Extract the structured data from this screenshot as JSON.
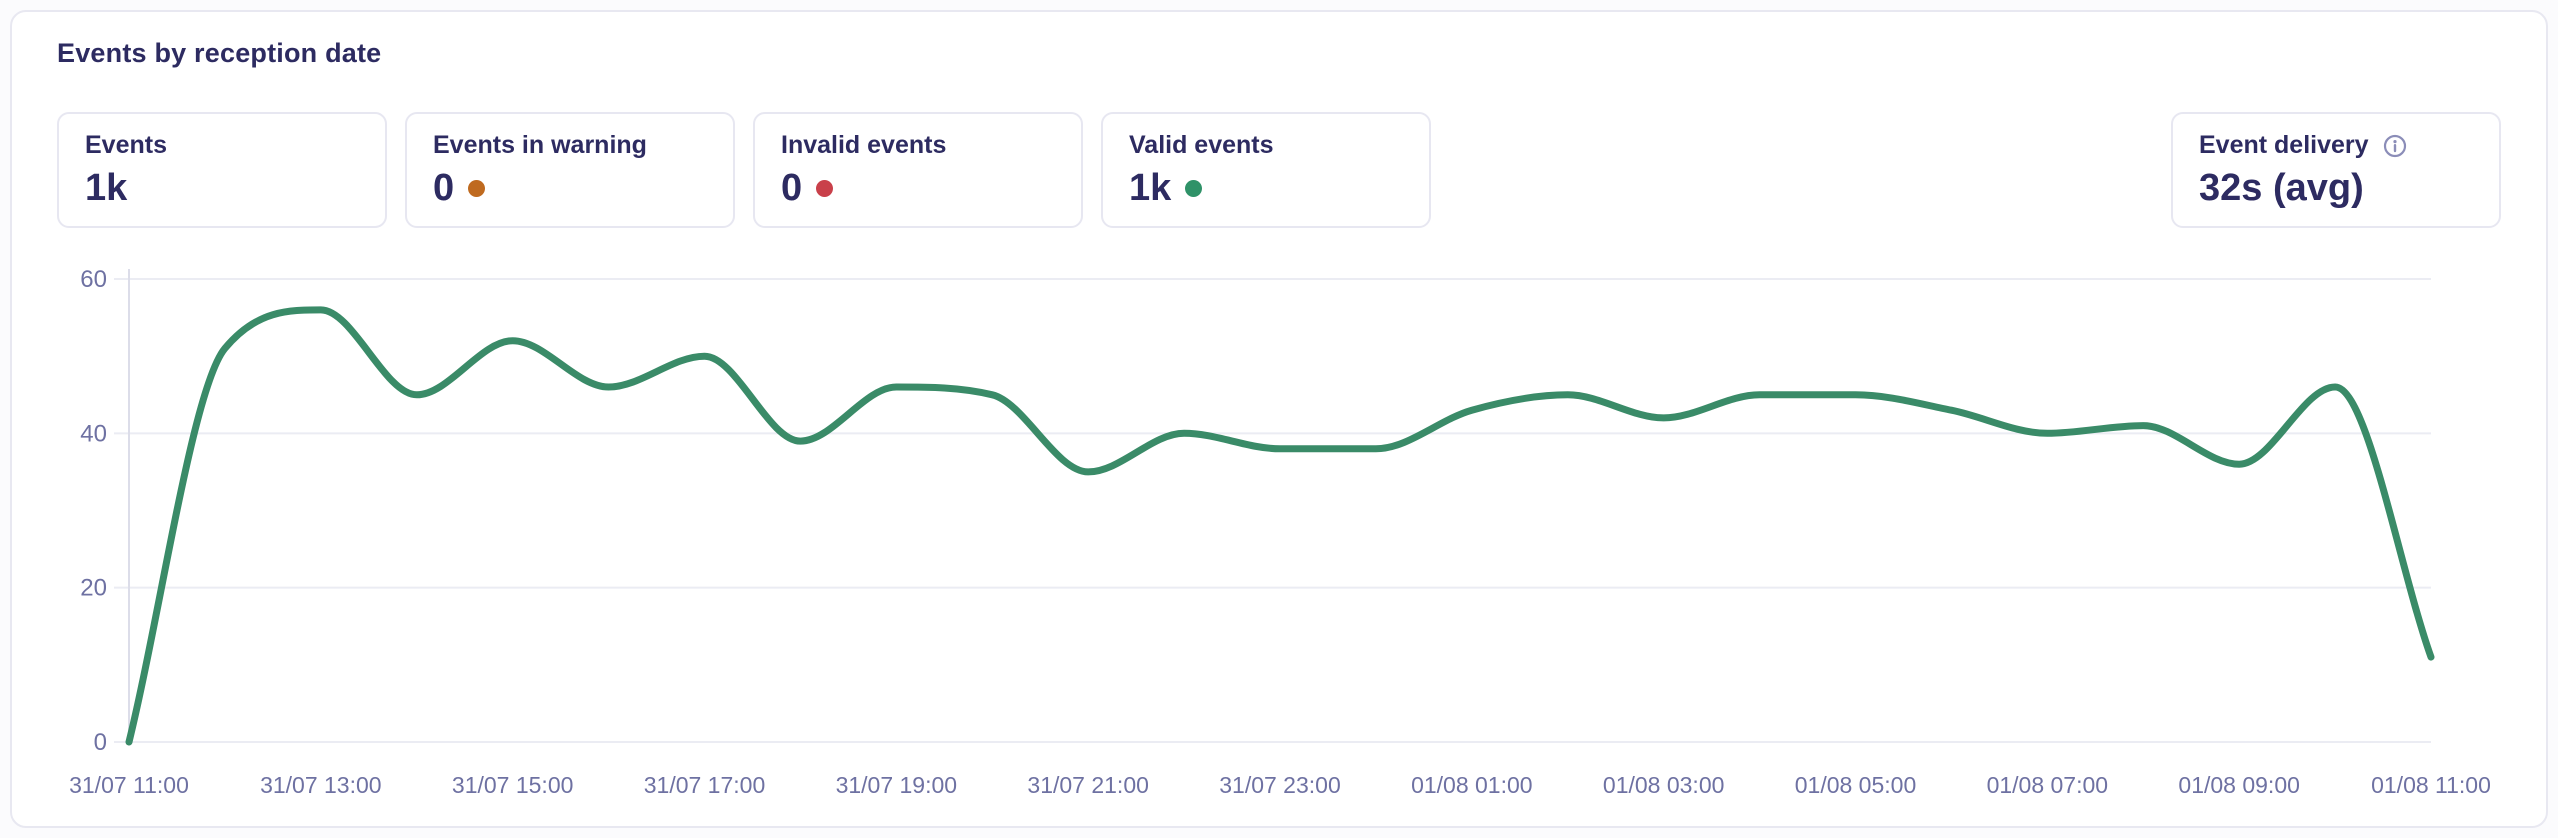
{
  "panel": {
    "title": "Events by reception date"
  },
  "stats": [
    {
      "label": "Events",
      "value": "1k",
      "dot_color": null
    },
    {
      "label": "Events in warning",
      "value": "0",
      "dot_color": "#bf6a1f"
    },
    {
      "label": "Invalid events",
      "value": "0",
      "dot_color": "#c9404a"
    },
    {
      "label": "Valid events",
      "value": "1k",
      "dot_color": "#2f9268"
    }
  ],
  "delivery": {
    "label": "Event delivery",
    "value": "32s (avg)",
    "info_icon": "info-icon"
  },
  "colors": {
    "text_navy": "#2d2b61",
    "axis_label": "#6e71a2",
    "gridline": "#ebecf3",
    "y_axis_line": "#dcdde9",
    "line": "#3a8b68",
    "card_border": "#e7e7f1"
  },
  "chart_data": {
    "type": "line",
    "title": "Events by reception date",
    "x": [
      "31/07 11:00",
      "31/07 12:00",
      "31/07 13:00",
      "31/07 14:00",
      "31/07 15:00",
      "31/07 16:00",
      "31/07 17:00",
      "31/07 18:00",
      "31/07 19:00",
      "31/07 20:00",
      "31/07 21:00",
      "31/07 22:00",
      "31/07 23:00",
      "01/08 00:00",
      "01/08 01:00",
      "01/08 02:00",
      "01/08 03:00",
      "01/08 04:00",
      "01/08 05:00",
      "01/08 06:00",
      "01/08 07:00",
      "01/08 08:00",
      "01/08 09:00",
      "01/08 10:00",
      "01/08 11:00"
    ],
    "values": [
      0,
      51,
      56,
      45,
      52,
      46,
      50,
      39,
      46,
      45,
      35,
      40,
      38,
      38,
      43,
      45,
      42,
      45,
      45,
      43,
      40,
      41,
      36,
      46,
      11
    ],
    "x_tick_labels": [
      "31/07 11:00",
      "31/07 13:00",
      "31/07 15:00",
      "31/07 17:00",
      "31/07 19:00",
      "31/07 21:00",
      "31/07 23:00",
      "01/08 01:00",
      "01/08 03:00",
      "01/08 05:00",
      "01/08 07:00",
      "01/08 09:00",
      "01/08 11:00"
    ],
    "y_ticks": [
      0,
      20,
      40,
      60
    ],
    "ylim": [
      0,
      60
    ],
    "xlabel": "",
    "ylabel": "",
    "grid": "horizontal",
    "legend": "none",
    "line_color": "#3a8b68",
    "smooth": true
  }
}
